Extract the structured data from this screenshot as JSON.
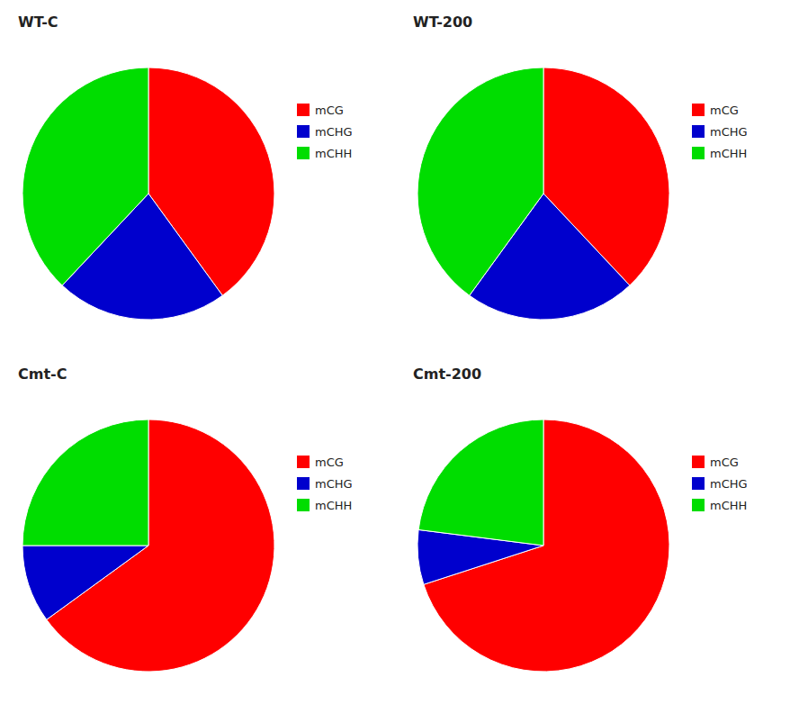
{
  "chart_data": [
    {
      "type": "pie",
      "title": "WT-C",
      "categories": [
        "mCG",
        "mCHG",
        "mCHH"
      ],
      "values": [
        40,
        22,
        38
      ],
      "colors": [
        "#ff0000",
        "#0000cd",
        "#00dd00"
      ],
      "legend": "right"
    },
    {
      "type": "pie",
      "title": "WT-200",
      "categories": [
        "mCG",
        "mCHG",
        "mCHH"
      ],
      "values": [
        38,
        22,
        40
      ],
      "colors": [
        "#ff0000",
        "#0000cd",
        "#00dd00"
      ],
      "legend": "right"
    },
    {
      "type": "pie",
      "title": "Cmt-C",
      "categories": [
        "mCG",
        "mCHG",
        "mCHH"
      ],
      "values": [
        65,
        10,
        25
      ],
      "colors": [
        "#ff0000",
        "#0000cd",
        "#00dd00"
      ],
      "legend": "right"
    },
    {
      "type": "pie",
      "title": "Cmt-200",
      "categories": [
        "mCG",
        "mCHG",
        "mCHH"
      ],
      "values": [
        70,
        7,
        23
      ],
      "colors": [
        "#ff0000",
        "#0000cd",
        "#00dd00"
      ],
      "legend": "right"
    }
  ]
}
